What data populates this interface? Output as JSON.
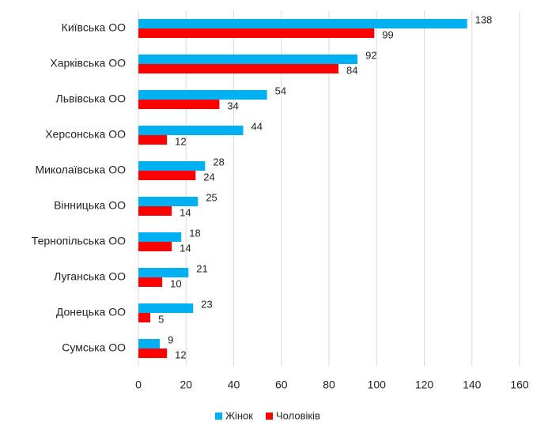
{
  "chart_data": {
    "type": "hbar",
    "categories": [
      "Київська ОО",
      "Харківська ОО",
      "Львівська ОО",
      "Херсонська ОО",
      "Миколаївська ОО",
      "Вінницька ОО",
      "Тернопільська ОО",
      "Луганська ОО",
      "Донецька ОО",
      "Сумська ОО"
    ],
    "series": [
      {
        "name": "Жінок",
        "color": "#00b0f0",
        "values": [
          138,
          92,
          54,
          44,
          28,
          25,
          18,
          21,
          23,
          9
        ]
      },
      {
        "name": "Чоловіків",
        "color": "#ff0000",
        "values": [
          99,
          84,
          34,
          12,
          24,
          14,
          14,
          10,
          5,
          12
        ]
      }
    ],
    "xlim": [
      0,
      160
    ],
    "xticks": [
      0,
      20,
      40,
      60,
      80,
      100,
      120,
      140,
      160
    ],
    "grid": true,
    "legend": "bottom"
  }
}
